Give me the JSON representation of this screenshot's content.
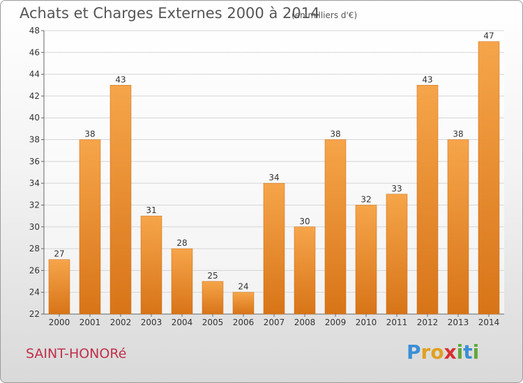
{
  "title": "Achats et Charges Externes 2000 à 2014",
  "subtitle": "(en milliers d'€)",
  "place_name": "SAINT-HONORé",
  "brand": {
    "letters": [
      "P",
      "r",
      "o",
      "x",
      "i",
      "t",
      "i"
    ],
    "colors": [
      "#3b8fd6",
      "#e0a020",
      "#e0a020",
      "#d8302f",
      "#5fa83a",
      "#3b8fd6",
      "#5fa83a"
    ]
  },
  "colors": {
    "bar_light": "#f6a54a",
    "bar_dark": "#d87418",
    "grid": "#d5d5d5",
    "axis_text": "#333333"
  },
  "chart_data": {
    "type": "bar",
    "categories": [
      "2000",
      "2001",
      "2002",
      "2003",
      "2004",
      "2005",
      "2006",
      "2007",
      "2008",
      "2009",
      "2010",
      "2011",
      "2012",
      "2013",
      "2014"
    ],
    "values": [
      27,
      38,
      43,
      31,
      28,
      25,
      24,
      34,
      30,
      38,
      32,
      33,
      43,
      38,
      47
    ],
    "yticks": [
      22,
      24,
      26,
      28,
      30,
      32,
      34,
      36,
      38,
      40,
      42,
      44,
      46,
      48
    ],
    "ylim": [
      22,
      48
    ],
    "grid": true,
    "data_labels": true
  }
}
